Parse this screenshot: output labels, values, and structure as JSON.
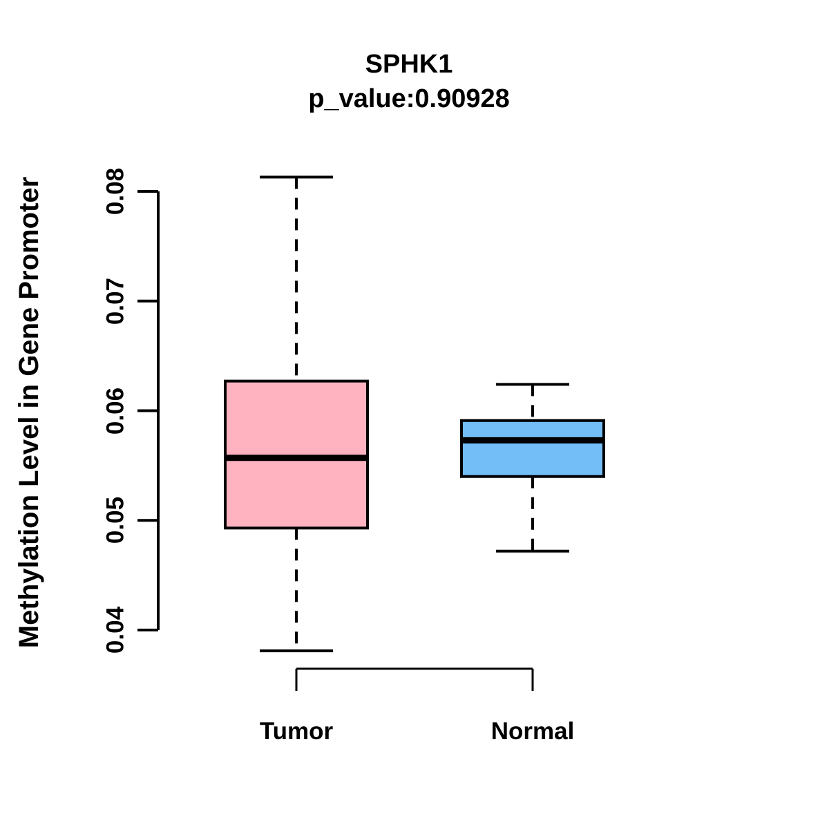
{
  "title": "SPHK1",
  "subtitle": "p_value:0.90928",
  "colors": {
    "tumor_fill": "#FFB3C1",
    "normal_fill": "#74BEF8",
    "line": "#000000",
    "background": "#FFFFFF"
  },
  "chart_data": {
    "type": "boxplot",
    "title": "SPHK1",
    "subtitle": "p_value:0.90928",
    "ylabel": "Methylation Level in Gene Promoter",
    "xlabel": "",
    "categories": [
      "Tumor",
      "Normal"
    ],
    "yticks": [
      0.04,
      0.05,
      0.06,
      0.07,
      0.08
    ],
    "ytick_labels": [
      "0.04",
      "0.05",
      "0.06",
      "0.07",
      "0.08"
    ],
    "ylim": [
      0.036,
      0.082
    ],
    "grid": false,
    "legend": "none",
    "series": [
      {
        "name": "Tumor",
        "color": "#FFB3C1",
        "whisker_low": 0.0381,
        "q1": 0.0493,
        "median": 0.0557,
        "q3": 0.0627,
        "whisker_high": 0.0813
      },
      {
        "name": "Normal",
        "color": "#74BEF8",
        "whisker_low": 0.0472,
        "q1": 0.054,
        "median": 0.0573,
        "q3": 0.0591,
        "whisker_high": 0.0624
      }
    ]
  }
}
